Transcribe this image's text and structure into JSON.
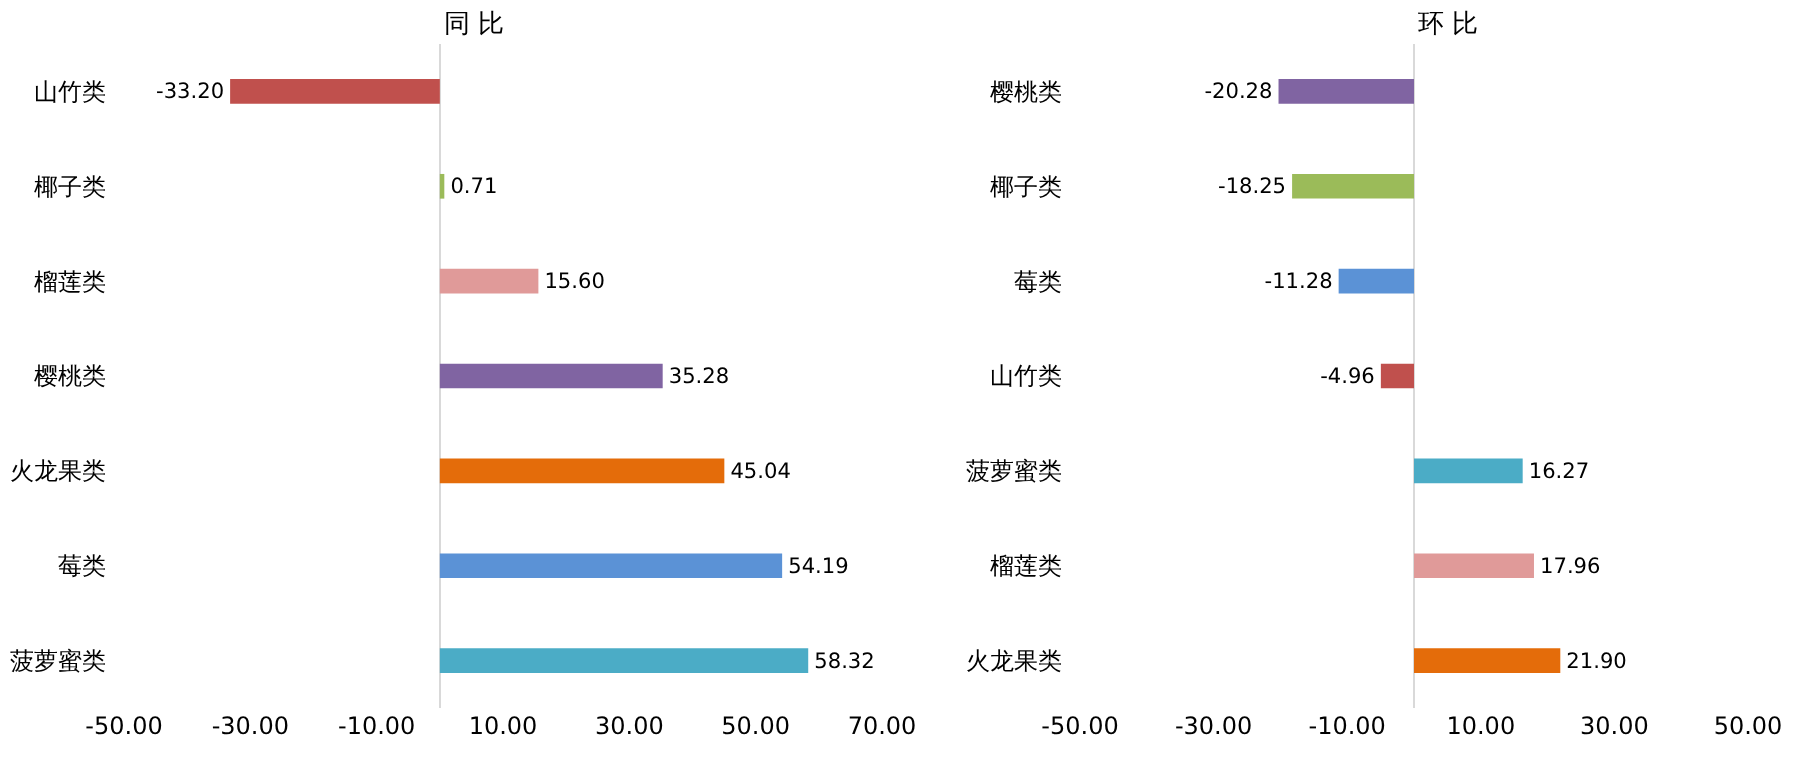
{
  "chart_data": [
    {
      "type": "bar",
      "orientation": "horizontal",
      "title": "同 比",
      "categories": [
        "山竹类",
        "椰子类",
        "榴莲类",
        "樱桃类",
        "火龙果类",
        "莓类",
        "菠萝蜜类"
      ],
      "values": [
        -33.2,
        0.71,
        15.6,
        35.28,
        45.04,
        54.19,
        58.32
      ],
      "value_labels": [
        "-33.20",
        "0.71",
        "15.60",
        "35.28",
        "45.04",
        "54.19",
        "58.32"
      ],
      "colors": [
        "#c0504d",
        "#9bbb59",
        "#e09a99",
        "#8064a2",
        "#e46c0a",
        "#5b92d6",
        "#4bacc6"
      ],
      "xlim": [
        -50,
        70
      ],
      "xticks": [
        {
          "value": -50,
          "label": "-50.00"
        },
        {
          "value": -30,
          "label": "-30.00"
        },
        {
          "value": -10,
          "label": "-10.00"
        },
        {
          "value": 10,
          "label": "10.00"
        },
        {
          "value": 30,
          "label": "30.00"
        },
        {
          "value": 50,
          "label": "50.00"
        },
        {
          "value": 70,
          "label": "70.00"
        }
      ]
    },
    {
      "type": "bar",
      "orientation": "horizontal",
      "title": "环 比",
      "categories": [
        "樱桃类",
        "椰子类",
        "莓类",
        "山竹类",
        "菠萝蜜类",
        "榴莲类",
        "火龙果类"
      ],
      "values": [
        -20.28,
        -18.25,
        -11.28,
        -4.96,
        16.27,
        17.96,
        21.9
      ],
      "value_labels": [
        "-20.28",
        "-18.25",
        "-11.28",
        "-4.96",
        "16.27",
        "17.96",
        "21.90"
      ],
      "colors": [
        "#8064a2",
        "#9bbb59",
        "#5b92d6",
        "#c0504d",
        "#4bacc6",
        "#e09a99",
        "#e46c0a"
      ],
      "xlim": [
        -50,
        50
      ],
      "xticks": [
        {
          "value": -50,
          "label": "-50.00"
        },
        {
          "value": -30,
          "label": "-30.00"
        },
        {
          "value": -10,
          "label": "-10.00"
        },
        {
          "value": 10,
          "label": "10.00"
        },
        {
          "value": 30,
          "label": "30.00"
        },
        {
          "value": 50,
          "label": "50.00"
        }
      ]
    }
  ]
}
